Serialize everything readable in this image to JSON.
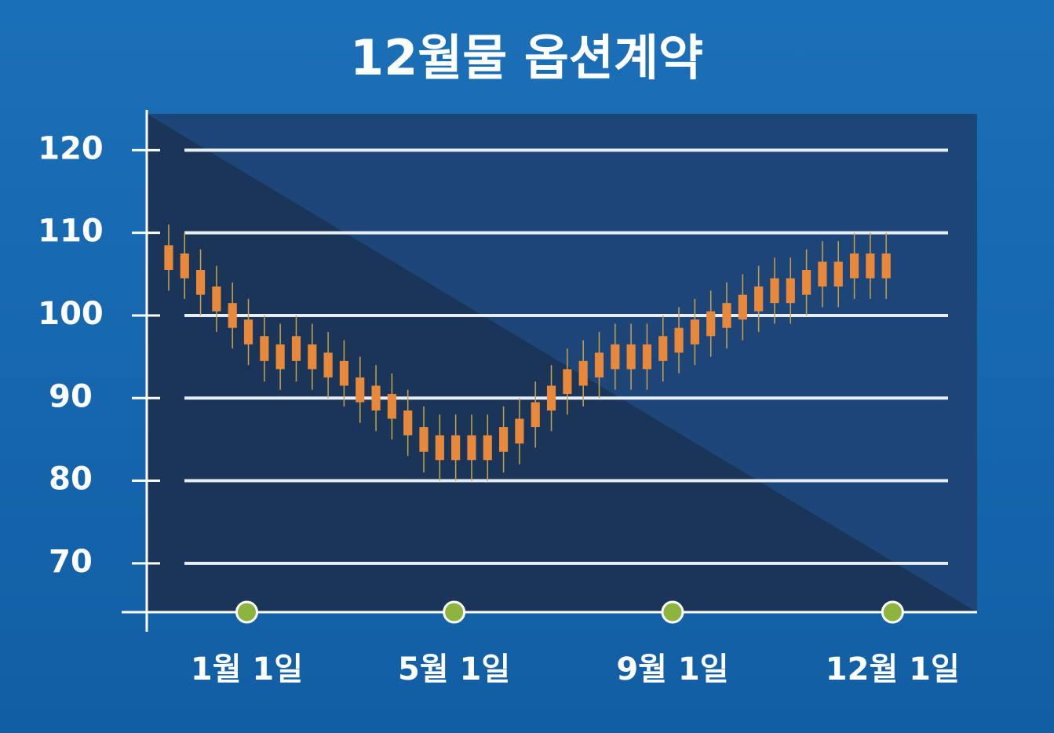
{
  "chart_data": {
    "type": "candlestick",
    "title": "12월물 옵션계약",
    "x": [
      0,
      1,
      2,
      3,
      4,
      5,
      6,
      7,
      8,
      9,
      10,
      11,
      12,
      13,
      14,
      15,
      16,
      17,
      18,
      19,
      20,
      21,
      22,
      23,
      24,
      25,
      26,
      27,
      28,
      29,
      30,
      31,
      32,
      33,
      34,
      35,
      36,
      37,
      38,
      39,
      40,
      41,
      42,
      43,
      44,
      45
    ],
    "open": [
      108.5,
      107.5,
      105.5,
      103.5,
      101.5,
      99.5,
      97.5,
      96.5,
      97.5,
      96.5,
      95.5,
      94.5,
      92.5,
      91.5,
      90.5,
      88.5,
      86.5,
      85.5,
      85.5,
      85.5,
      85.5,
      83.5,
      84.5,
      86.5,
      88.5,
      90.5,
      91.5,
      92.5,
      93.5,
      93.5,
      93.5,
      94.5,
      95.5,
      96.5,
      97.5,
      98.5,
      99.5,
      100.5,
      101.5,
      101.5,
      102.5,
      103.5,
      103.5,
      104.5,
      104.5,
      104.5
    ],
    "close": [
      105.5,
      104.5,
      102.5,
      100.5,
      98.5,
      96.5,
      94.5,
      93.5,
      94.5,
      93.5,
      92.5,
      91.5,
      89.5,
      88.5,
      87.5,
      85.5,
      83.5,
      82.5,
      82.5,
      82.5,
      82.5,
      86.5,
      87.5,
      89.5,
      91.5,
      93.5,
      94.5,
      95.5,
      96.5,
      96.5,
      96.5,
      97.5,
      98.5,
      99.5,
      100.5,
      101.5,
      102.5,
      103.5,
      104.5,
      104.5,
      105.5,
      106.5,
      106.5,
      107.5,
      107.5,
      107.5
    ],
    "high": [
      111,
      110,
      108,
      106,
      104,
      102,
      100,
      99,
      100,
      99,
      98,
      97,
      95,
      94,
      93,
      91,
      89,
      88,
      88,
      88,
      88,
      89,
      90,
      92,
      94,
      96,
      97,
      98,
      99,
      99,
      99,
      100,
      101,
      102,
      103,
      104,
      105,
      106,
      107,
      107,
      108,
      109,
      109,
      110,
      110,
      110
    ],
    "low": [
      103,
      102,
      100,
      98,
      96,
      94,
      92,
      91,
      92,
      91,
      90,
      89,
      87,
      86,
      85,
      83,
      81,
      80,
      80,
      80,
      80,
      81,
      82,
      84,
      86,
      88,
      89,
      90,
      91,
      91,
      91,
      92,
      93,
      94,
      95,
      96,
      97,
      98,
      99,
      99,
      100,
      101,
      101,
      102,
      102,
      102
    ],
    "color": "#e8883a",
    "xlim": [
      -2.95,
      50.7
    ],
    "xticks": [
      {
        "value": 4.9,
        "label": "1월 1일"
      },
      {
        "value": 17.9,
        "label": "5월 1일"
      },
      {
        "value": 31.6,
        "label": "9월 1일"
      },
      {
        "value": 45.4,
        "label": "12월 1일"
      }
    ],
    "ylim": [
      64.1,
      124.4
    ],
    "yticks": [
      70,
      80,
      90,
      100,
      110,
      120
    ],
    "grid": true
  }
}
